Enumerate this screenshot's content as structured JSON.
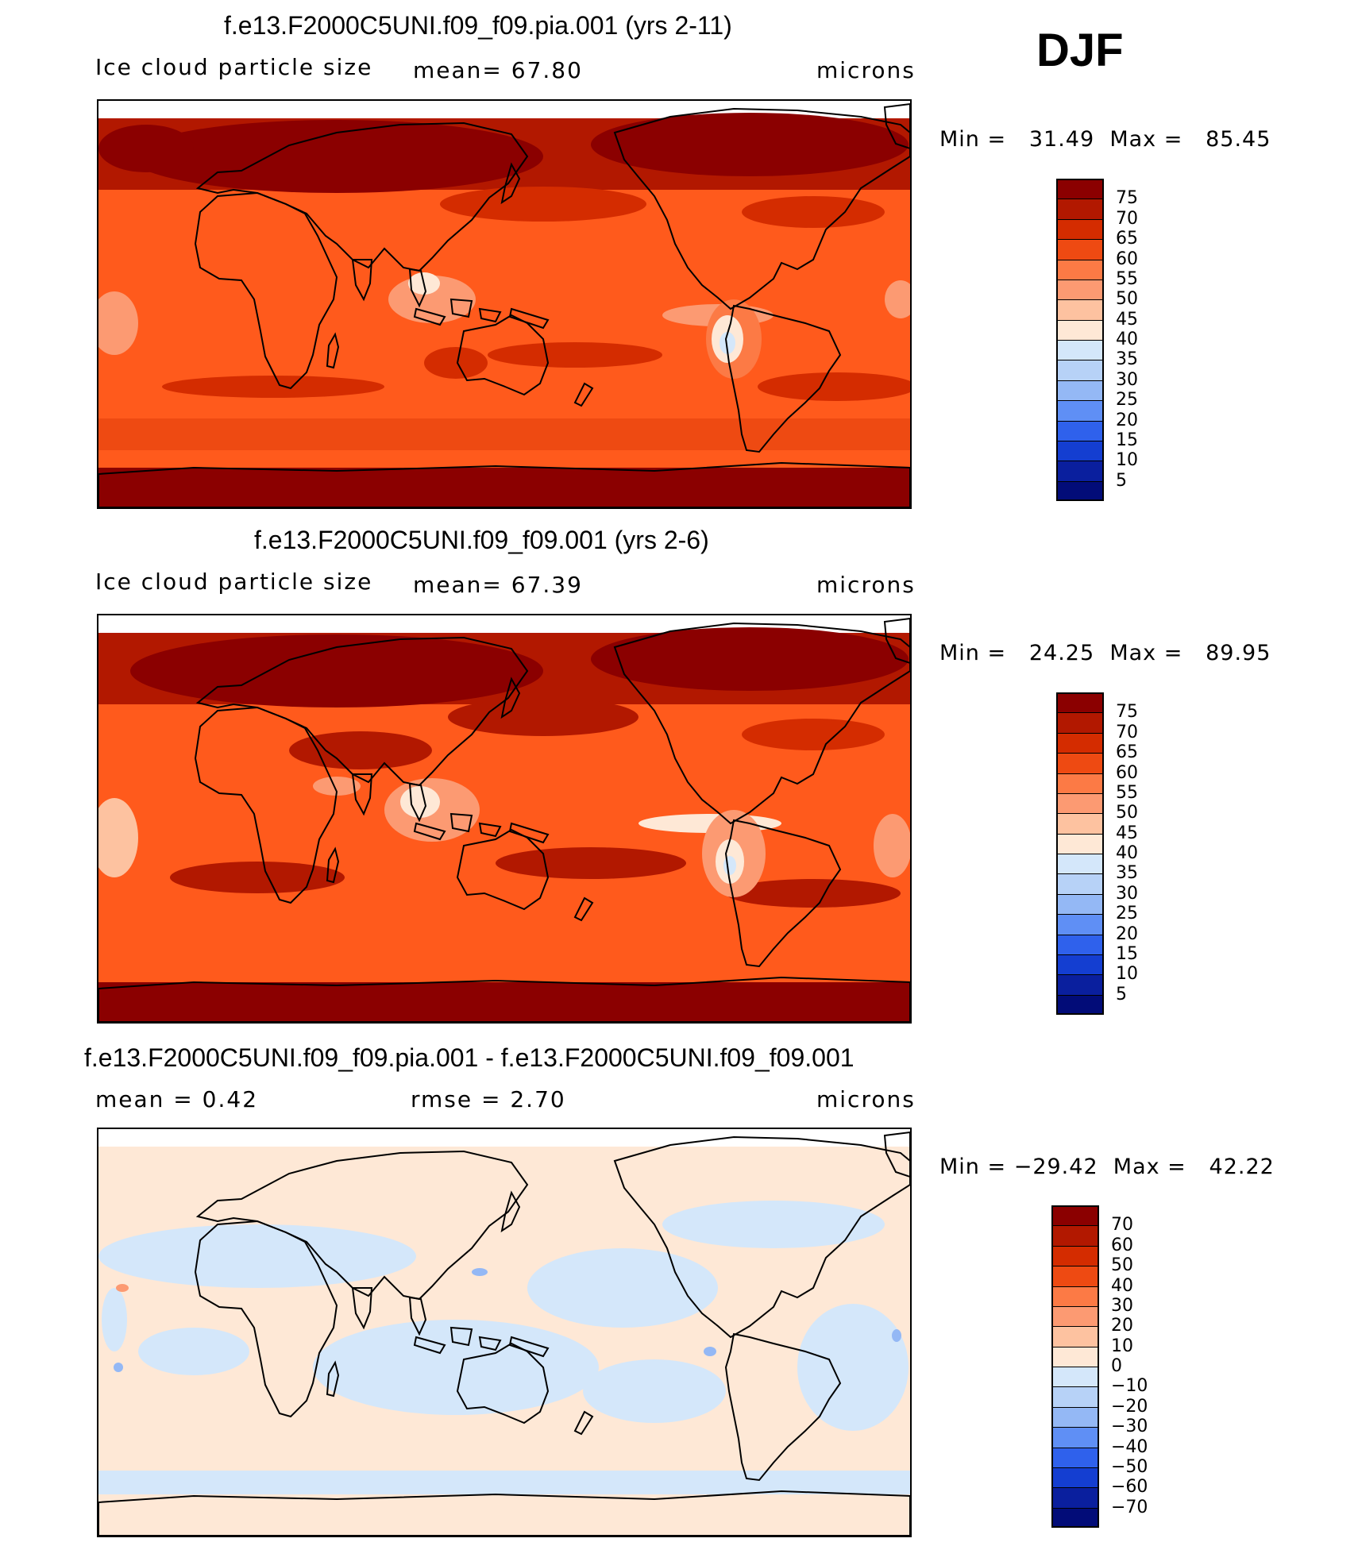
{
  "season": "DJF",
  "panels": [
    {
      "title": "f.e13.F2000C5UNI.f09_f09.pia.001 (yrs 2-11)",
      "left_label": "Ice cloud particle size",
      "center_label": "mean=   67.80",
      "right_label": "microns",
      "min_max": "Min =   31.49  Max =   85.45",
      "field": "absolute",
      "colorbar_levels": [
        "75",
        "70",
        "65",
        "60",
        "55",
        "50",
        "45",
        "40",
        "35",
        "30",
        "25",
        "20",
        "15",
        "10",
        "5"
      ]
    },
    {
      "title": "f.e13.F2000C5UNI.f09_f09.001 (yrs 2-6)",
      "left_label": "Ice cloud particle size",
      "center_label": "mean=   67.39",
      "right_label": "microns",
      "min_max": "Min =   24.25  Max =   89.95",
      "field": "absolute",
      "colorbar_levels": [
        "75",
        "70",
        "65",
        "60",
        "55",
        "50",
        "45",
        "40",
        "35",
        "30",
        "25",
        "20",
        "15",
        "10",
        "5"
      ]
    },
    {
      "title": "f.e13.F2000C5UNI.f09_f09.pia.001 - f.e13.F2000C5UNI.f09_f09.001",
      "left_label": "mean =     0.42",
      "center_label": "rmse =     2.70",
      "right_label": "microns",
      "min_max": "Min = −29.42  Max =   42.22",
      "field": "difference",
      "colorbar_levels": [
        "70",
        "60",
        "50",
        "40",
        "30",
        "20",
        "10",
        "0",
        "−10",
        "−20",
        "−30",
        "−40",
        "−50",
        "−60",
        "−70"
      ]
    }
  ],
  "colors": {
    "colorbar_top_to_bottom": [
      "#8b0000",
      "#b21800",
      "#d42c00",
      "#ee4a12",
      "#fc7a45",
      "#fc9a72",
      "#fdc2a0",
      "#fee8d6",
      "#d4e7fa",
      "#b7d2f7",
      "#94b8f5",
      "#5f8ff5",
      "#2f61ec",
      "#143ed1",
      "#0a1f9e",
      "#020c78"
    ],
    "ocean_absolute": "#ff5a1c",
    "ocean_difference": "#fee8d6",
    "coastline": "#000000"
  }
}
